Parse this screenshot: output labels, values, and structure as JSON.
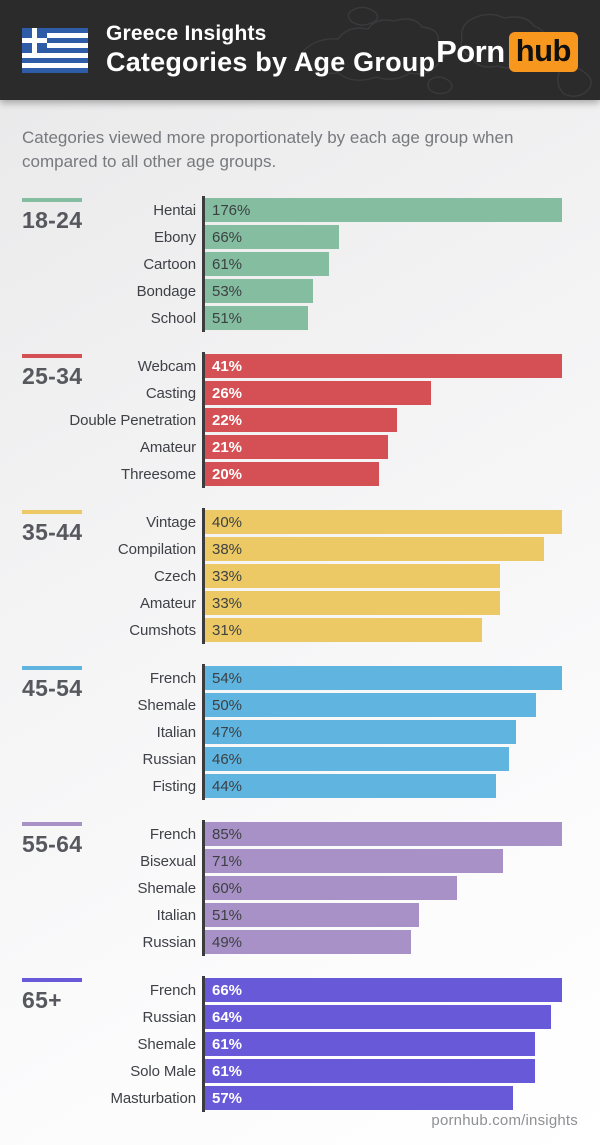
{
  "header": {
    "kicker": "Greece Insights",
    "title": "Categories by Age Group",
    "flag_name": "greece-flag",
    "flag_blue": "#2e5ca6",
    "background_color": "#2b2b2c",
    "brand": {
      "part1": "Porn",
      "part2": "hub",
      "accent_color": "#f7971d"
    }
  },
  "subtitle": "Categories viewed more proportionately by each age group when compared to all other age groups.",
  "chart_data": {
    "type": "bar",
    "orientation": "horizontal",
    "unit": "%",
    "layout": {
      "bar_scaling": "per-group maximum fills full bar width",
      "value_labels": "inside bar, left"
    },
    "groups": [
      {
        "age_group": "18-24",
        "color": "#84bd9f",
        "value_text_color": "#3c4043",
        "items": [
          {
            "label": "Hentai",
            "value": 176
          },
          {
            "label": "Ebony",
            "value": 66
          },
          {
            "label": "Cartoon",
            "value": 61
          },
          {
            "label": "Bondage",
            "value": 53
          },
          {
            "label": "School",
            "value": 51
          }
        ]
      },
      {
        "age_group": "25-34",
        "color": "#d45055",
        "value_text_color": "#ffffff",
        "items": [
          {
            "label": "Webcam",
            "value": 41
          },
          {
            "label": "Casting",
            "value": 26
          },
          {
            "label": "Double Penetration",
            "value": 22
          },
          {
            "label": "Amateur",
            "value": 21
          },
          {
            "label": "Threesome",
            "value": 20
          }
        ]
      },
      {
        "age_group": "35-44",
        "color": "#ecc964",
        "value_text_color": "#3c4043",
        "items": [
          {
            "label": "Vintage",
            "value": 40
          },
          {
            "label": "Compilation",
            "value": 38
          },
          {
            "label": "Czech",
            "value": 33
          },
          {
            "label": "Amateur",
            "value": 33
          },
          {
            "label": "Cumshots",
            "value": 31
          }
        ]
      },
      {
        "age_group": "45-54",
        "color": "#5fb4e0",
        "value_text_color": "#3c4043",
        "items": [
          {
            "label": "French",
            "value": 54
          },
          {
            "label": "Shemale",
            "value": 50
          },
          {
            "label": "Italian",
            "value": 47
          },
          {
            "label": "Russian",
            "value": 46
          },
          {
            "label": "Fisting",
            "value": 44
          }
        ]
      },
      {
        "age_group": "55-64",
        "color": "#a891c6",
        "value_text_color": "#3c4043",
        "items": [
          {
            "label": "French",
            "value": 85
          },
          {
            "label": "Bisexual",
            "value": 71
          },
          {
            "label": "Shemale",
            "value": 60
          },
          {
            "label": "Italian",
            "value": 51
          },
          {
            "label": "Russian",
            "value": 49
          }
        ]
      },
      {
        "age_group": "65+",
        "color": "#6859d8",
        "value_text_color": "#ffffff",
        "items": [
          {
            "label": "French",
            "value": 66
          },
          {
            "label": "Russian",
            "value": 64
          },
          {
            "label": "Shemale",
            "value": 61
          },
          {
            "label": "Solo Male",
            "value": 61
          },
          {
            "label": "Masturbation",
            "value": 57
          }
        ]
      }
    ]
  },
  "footer": {
    "link": "pornhub.com/insights"
  }
}
